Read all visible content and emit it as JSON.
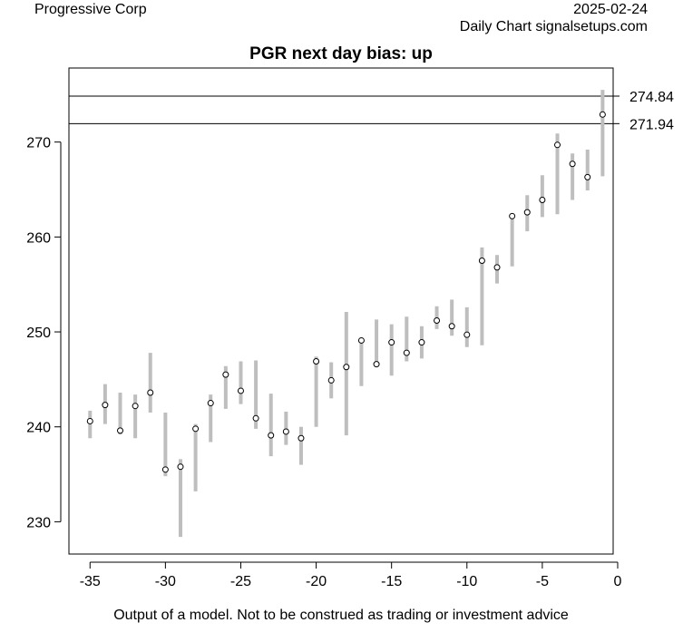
{
  "header": {
    "company": "Progressive Corp",
    "date": "2025-02-24",
    "source": "Daily Chart signalsetups.com"
  },
  "footer": "Output of a model. Not to be construed as trading or investment advice",
  "colors": {
    "range_bar": "#bebebe",
    "point_fill": "#ffffff",
    "axis": "#000000"
  },
  "chart_data": {
    "type": "range-point",
    "title": "PGR next day bias: up",
    "xlim": [
      -36.4,
      -0.3
    ],
    "ylim": [
      226.6,
      277.8
    ],
    "x_ticks": [
      -35,
      -30,
      -25,
      -20,
      -15,
      -10,
      -5,
      0
    ],
    "y_ticks": [
      230,
      240,
      250,
      260,
      270
    ],
    "reference_lines": [
      274.84,
      271.94
    ],
    "reference_labels": [
      "274.84",
      "271.94"
    ],
    "points": [
      {
        "x": -35,
        "low": 238.8,
        "high": 241.7,
        "value": 240.6
      },
      {
        "x": -34,
        "low": 240.3,
        "high": 244.5,
        "value": 242.3
      },
      {
        "x": -33,
        "low": 239.2,
        "high": 243.6,
        "value": 239.6
      },
      {
        "x": -32,
        "low": 238.8,
        "high": 243.4,
        "value": 242.2
      },
      {
        "x": -31,
        "low": 241.5,
        "high": 247.8,
        "value": 243.6
      },
      {
        "x": -30,
        "low": 234.8,
        "high": 241.5,
        "value": 235.5
      },
      {
        "x": -29,
        "low": 228.4,
        "high": 236.6,
        "value": 235.8
      },
      {
        "x": -28,
        "low": 233.2,
        "high": 240.3,
        "value": 239.8
      },
      {
        "x": -27,
        "low": 238.4,
        "high": 243.4,
        "value": 242.5
      },
      {
        "x": -26,
        "low": 241.9,
        "high": 246.4,
        "value": 245.5
      },
      {
        "x": -25,
        "low": 242.4,
        "high": 246.9,
        "value": 243.8
      },
      {
        "x": -24,
        "low": 239.8,
        "high": 247.0,
        "value": 240.9
      },
      {
        "x": -23,
        "low": 236.9,
        "high": 243.5,
        "value": 239.1
      },
      {
        "x": -22,
        "low": 238.1,
        "high": 241.6,
        "value": 239.5
      },
      {
        "x": -21,
        "low": 236.0,
        "high": 240.0,
        "value": 238.8
      },
      {
        "x": -20,
        "low": 240.0,
        "high": 247.4,
        "value": 246.9
      },
      {
        "x": -19,
        "low": 243.0,
        "high": 246.8,
        "value": 244.9
      },
      {
        "x": -18,
        "low": 239.1,
        "high": 252.1,
        "value": 246.3
      },
      {
        "x": -17,
        "low": 244.3,
        "high": 249.4,
        "value": 249.1
      },
      {
        "x": -16,
        "low": 246.5,
        "high": 251.3,
        "value": 246.6
      },
      {
        "x": -15,
        "low": 245.4,
        "high": 250.8,
        "value": 248.9
      },
      {
        "x": -14,
        "low": 246.9,
        "high": 251.6,
        "value": 247.8
      },
      {
        "x": -13,
        "low": 247.2,
        "high": 250.6,
        "value": 248.9
      },
      {
        "x": -12,
        "low": 250.3,
        "high": 252.7,
        "value": 251.2
      },
      {
        "x": -11,
        "low": 249.6,
        "high": 253.4,
        "value": 250.6
      },
      {
        "x": -10,
        "low": 248.4,
        "high": 252.6,
        "value": 249.7
      },
      {
        "x": -9,
        "low": 248.6,
        "high": 258.9,
        "value": 257.5
      },
      {
        "x": -8,
        "low": 255.1,
        "high": 258.1,
        "value": 256.8
      },
      {
        "x": -7,
        "low": 256.9,
        "high": 262.3,
        "value": 262.2
      },
      {
        "x": -6,
        "low": 260.6,
        "high": 264.4,
        "value": 262.6
      },
      {
        "x": -5,
        "low": 262.1,
        "high": 266.5,
        "value": 263.9
      },
      {
        "x": -4,
        "low": 262.4,
        "high": 270.9,
        "value": 269.7
      },
      {
        "x": -3,
        "low": 263.9,
        "high": 268.8,
        "value": 267.7
      },
      {
        "x": -2,
        "low": 264.9,
        "high": 269.2,
        "value": 266.3
      },
      {
        "x": -1,
        "low": 266.4,
        "high": 275.5,
        "value": 272.9
      }
    ]
  }
}
